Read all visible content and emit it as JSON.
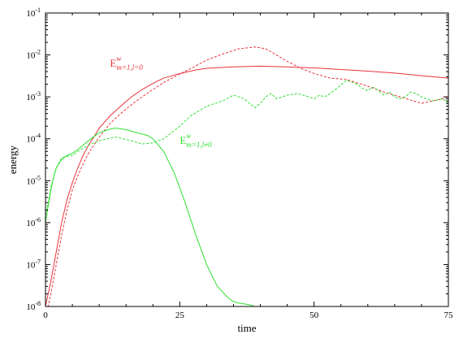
{
  "chart_data": {
    "type": "line",
    "title": "",
    "xlabel": "time",
    "ylabel": "energy",
    "xlim": [
      0,
      75
    ],
    "ylim": [
      1e-08,
      0.1
    ],
    "yscale": "log",
    "grid": false,
    "legend": "none",
    "x_ticks": [
      0,
      25,
      50,
      75
    ],
    "x_tick_labels": [
      "0",
      "25",
      "50",
      "75"
    ],
    "y_ticks": [
      1e-08,
      1e-07,
      1e-06,
      1e-05,
      0.0001,
      0.001,
      0.01,
      0.1
    ],
    "y_tick_labels": [
      {
        "base": "10",
        "exp": "-8"
      },
      {
        "base": "10",
        "exp": "-7"
      },
      {
        "base": "10",
        "exp": "-6"
      },
      {
        "base": "10",
        "exp": "-5"
      },
      {
        "base": "10",
        "exp": "-4"
      },
      {
        "base": "10",
        "exp": "-3"
      },
      {
        "base": "10",
        "exp": "-2"
      },
      {
        "base": "10",
        "exp": "-1"
      }
    ],
    "colors": {
      "red": "#e8333a",
      "green": "#2ee02e"
    },
    "annotations": [
      {
        "id": "red",
        "main": "E",
        "sup": "w",
        "sub": "m=1,l=0",
        "color": "#e8333a",
        "x": 12.0,
        "y": 0.0053
      },
      {
        "id": "green",
        "main": "E",
        "sup": "w",
        "sub": "m=1,l≠0",
        "color": "#2ee02e",
        "x": 25.0,
        "y": 7.5e-05
      }
    ],
    "series": [
      {
        "color": "#e8333a",
        "dash": "solid",
        "x": [
          0,
          1,
          2,
          3,
          4,
          5,
          6,
          7,
          8,
          9,
          10,
          12,
          14,
          16,
          18,
          20,
          22,
          25,
          28,
          30,
          35,
          40,
          45,
          50,
          55,
          60,
          65,
          70,
          75
        ],
        "y": [
          1e-08,
          4e-08,
          2e-07,
          1e-06,
          3.5e-06,
          9e-06,
          2e-05,
          4e-05,
          7e-05,
          0.00011,
          0.00018,
          0.00035,
          0.0006,
          0.001,
          0.0015,
          0.0021,
          0.0028,
          0.0036,
          0.0044,
          0.0048,
          0.0052,
          0.0054,
          0.0052,
          0.0049,
          0.0045,
          0.0041,
          0.0037,
          0.0032,
          0.0028
        ]
      },
      {
        "color": "#e8333a",
        "dash": "dashed",
        "x": [
          0,
          1,
          2,
          3,
          4,
          5,
          6,
          7,
          8,
          9,
          10,
          12,
          14,
          16,
          18,
          20,
          22,
          25,
          28,
          30,
          33,
          36,
          39,
          41,
          43,
          45,
          48,
          50,
          53,
          56,
          60,
          63,
          66,
          70,
          73,
          75
        ],
        "y": [
          5e-09,
          2e-08,
          1e-07,
          5e-07,
          2e-06,
          6e-06,
          1.3e-05,
          2.5e-05,
          4.5e-05,
          7e-05,
          0.00011,
          0.00023,
          0.0004,
          0.00065,
          0.001,
          0.0015,
          0.0022,
          0.0035,
          0.0055,
          0.0075,
          0.0105,
          0.014,
          0.0155,
          0.014,
          0.01,
          0.007,
          0.0045,
          0.0036,
          0.0028,
          0.0026,
          0.0018,
          0.0013,
          0.001,
          0.0007,
          0.00085,
          0.001
        ]
      },
      {
        "color": "#2ee02e",
        "dash": "solid",
        "x": [
          0,
          0.5,
          1,
          1.5,
          2,
          3,
          4,
          5,
          6,
          8,
          10,
          12,
          13,
          15,
          17,
          19,
          20,
          22,
          24,
          26,
          28,
          30,
          32,
          34,
          35,
          36,
          38,
          40,
          41
        ],
        "y": [
          1e-06,
          2.5e-06,
          6e-06,
          1.2e-05,
          2e-05,
          3.2e-05,
          4e-05,
          4.5e-05,
          5.5e-05,
          9e-05,
          0.00014,
          0.00017,
          0.00018,
          0.000165,
          0.00014,
          0.00012,
          0.0001,
          5e-05,
          1.5e-05,
          3e-06,
          5e-07,
          1e-07,
          3e-08,
          1.6e-08,
          1.3e-08,
          1.2e-08,
          1.1e-08,
          9e-09,
          8e-09
        ]
      },
      {
        "color": "#2ee02e",
        "dash": "dashed",
        "x": [
          0,
          0.5,
          1,
          2,
          3,
          4,
          5,
          6,
          8,
          10,
          13,
          16,
          18,
          20,
          22,
          25,
          27,
          30,
          33,
          35,
          37,
          38,
          39,
          40,
          41,
          42,
          43,
          45,
          47,
          49,
          50,
          51,
          52,
          53,
          54,
          56,
          58,
          59,
          60,
          61,
          62,
          63,
          64,
          65,
          66,
          67,
          68,
          69,
          70,
          72,
          74,
          75
        ],
        "y": [
          1.5e-06,
          3e-06,
          7e-06,
          2e-05,
          3.5e-05,
          3.8e-05,
          4e-05,
          5e-05,
          7e-05,
          9e-05,
          0.00011,
          9e-05,
          7.5e-05,
          8e-05,
          0.0001,
          0.0002,
          0.00035,
          0.0006,
          0.0008,
          0.0011,
          0.0009,
          0.0007,
          0.00055,
          0.0007,
          0.001,
          0.0012,
          0.0009,
          0.0011,
          0.0012,
          0.001,
          0.0009,
          0.0011,
          0.001,
          0.0012,
          0.0015,
          0.0025,
          0.002,
          0.0016,
          0.0014,
          0.0017,
          0.0014,
          0.0011,
          0.0013,
          0.001,
          0.0009,
          0.001,
          0.0013,
          0.0012,
          0.001,
          0.0008,
          0.0009,
          0.0007
        ]
      }
    ]
  }
}
